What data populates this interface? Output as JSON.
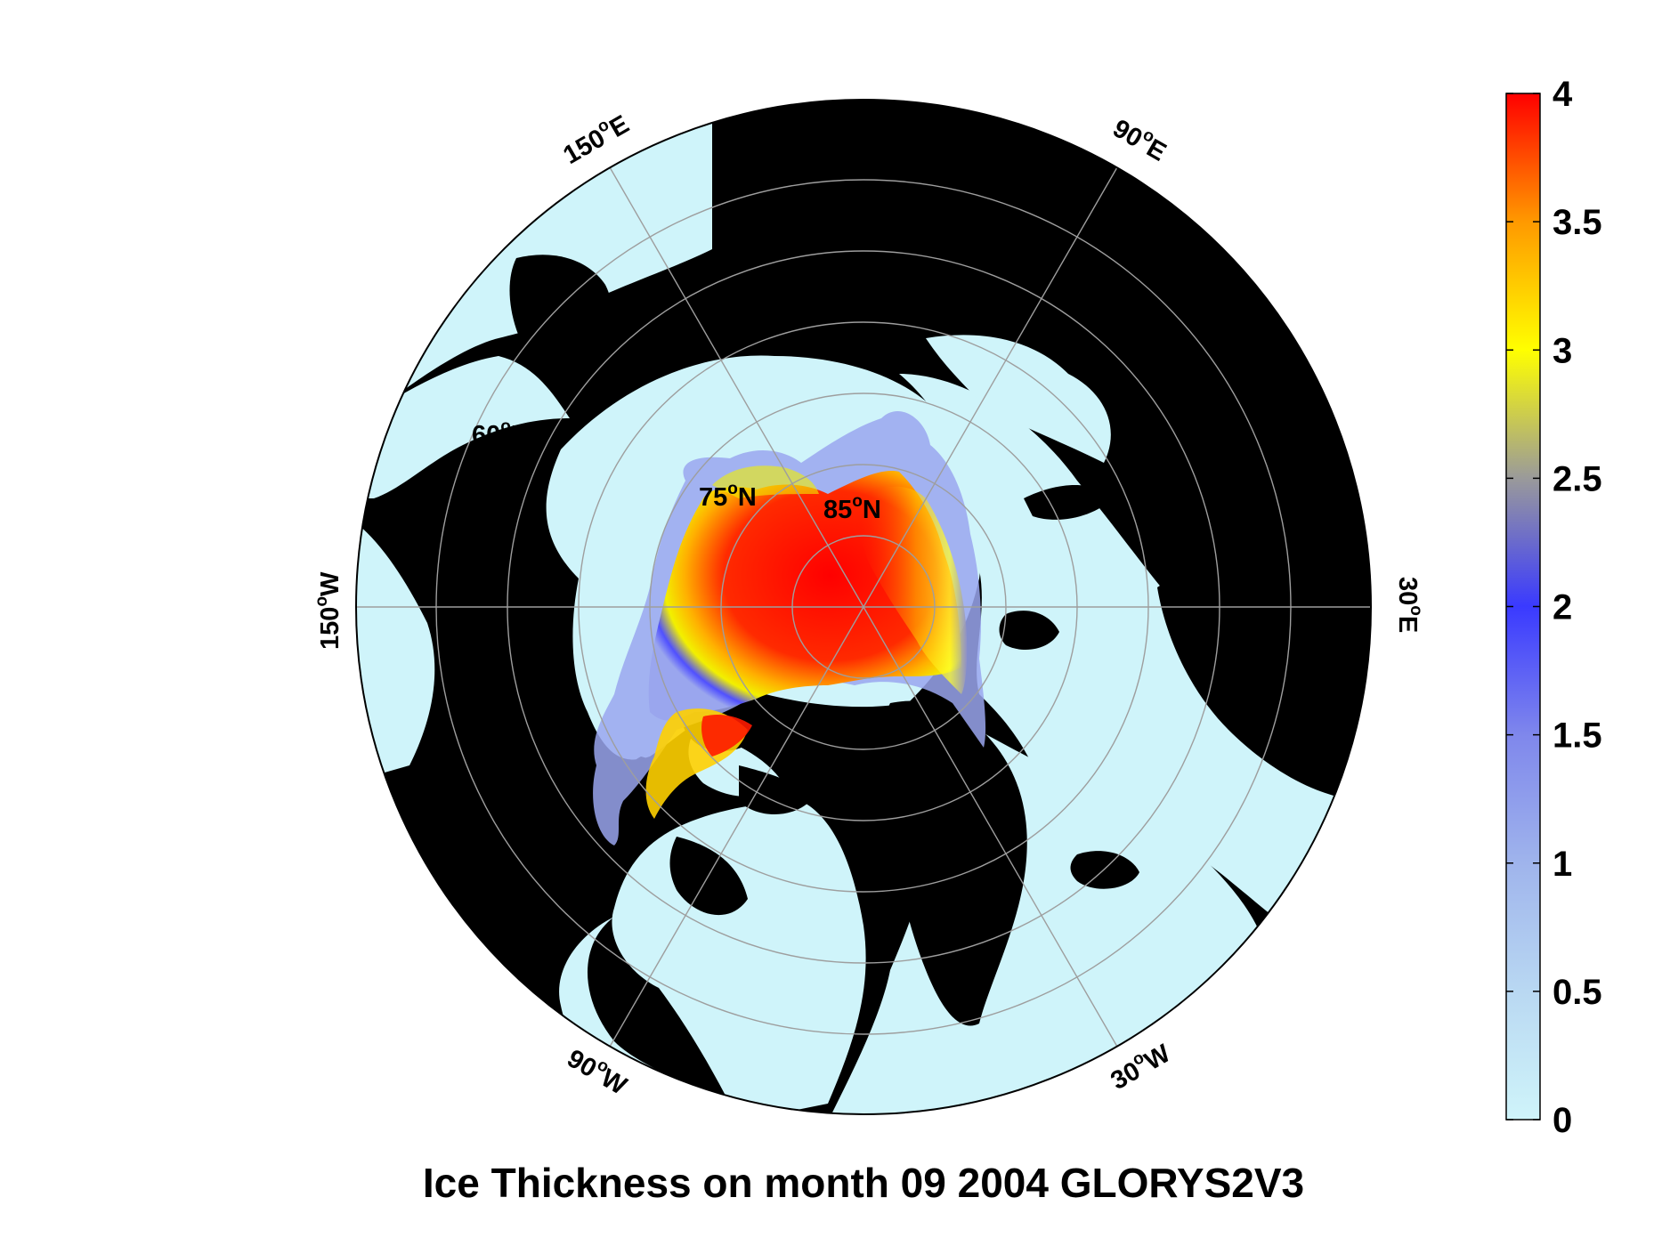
{
  "title": "Ice Thickness on month 09 2004 GLORYS2V3",
  "colorbar": {
    "ticks": [
      "0",
      "0.5",
      "1",
      "1.5",
      "2",
      "2.5",
      "3",
      "3.5",
      "4"
    ],
    "min": 0,
    "max": 4,
    "colors": [
      "#cff4fa",
      "#b9d8f2",
      "#9fb4ec",
      "#7f87ec",
      "#3a3aff",
      "#9a9a9a",
      "#ffff00",
      "#ff9900",
      "#ff0000"
    ]
  },
  "colors": {
    "land": "#000000",
    "ocean": "#cff4fa",
    "graticule": "#9e9e9e"
  },
  "latitude_labels": [
    {
      "deg": "60",
      "hemi": "N"
    },
    {
      "deg": "75",
      "hemi": "N"
    },
    {
      "deg": "85",
      "hemi": "N"
    }
  ],
  "longitude_labels": [
    {
      "deg": "150",
      "hemi": "E"
    },
    {
      "deg": "90",
      "hemi": "E"
    },
    {
      "deg": "150",
      "hemi": "W"
    },
    {
      "deg": "30",
      "hemi": "E"
    },
    {
      "deg": "90",
      "hemi": "W"
    },
    {
      "deg": "30",
      "hemi": "W"
    }
  ],
  "degree_symbol": "o"
}
